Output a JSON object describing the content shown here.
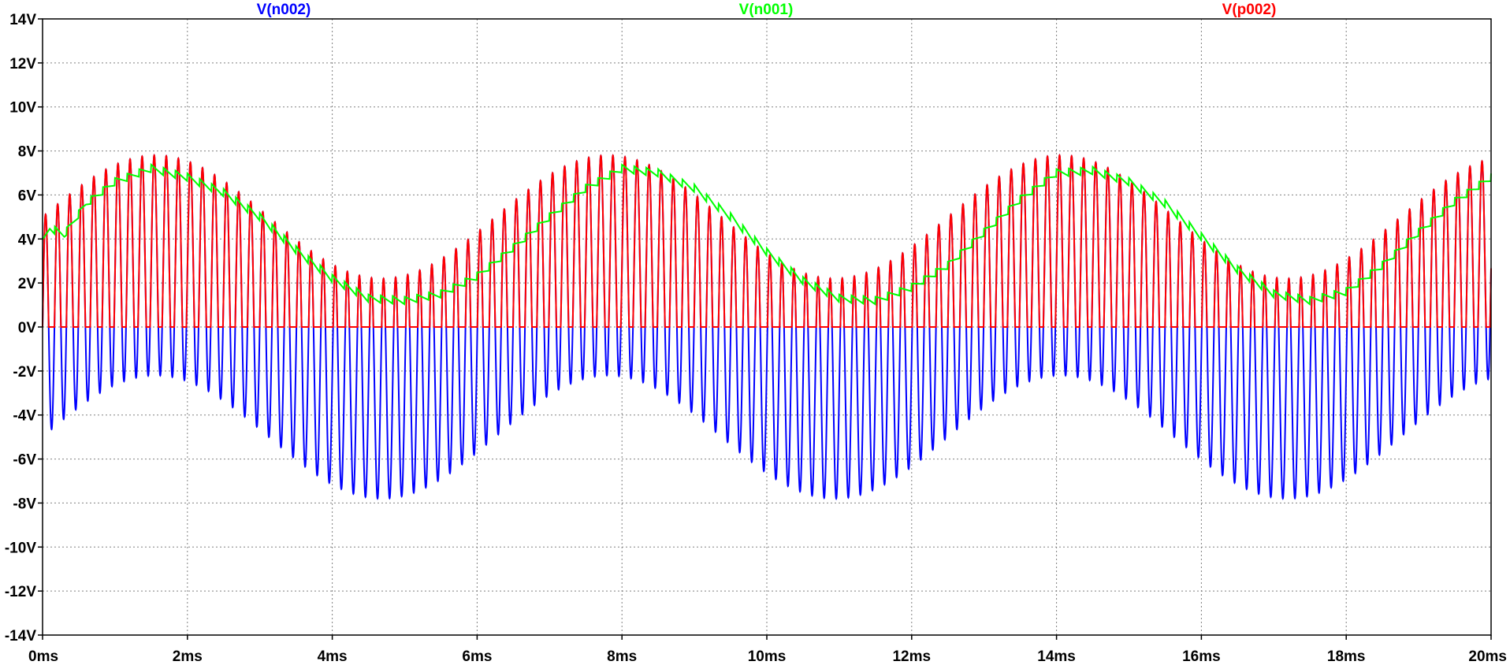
{
  "chart_data": {
    "type": "line",
    "title": "",
    "xlabel": "",
    "ylabel": "",
    "xlim": [
      0,
      20
    ],
    "ylim": [
      -14,
      14
    ],
    "x_unit": "ms",
    "y_unit": "V",
    "grid": true,
    "grid_style": "dotted",
    "legend_placement": "top",
    "x_ticks": [
      0,
      2,
      4,
      6,
      8,
      10,
      12,
      14,
      16,
      18,
      20
    ],
    "x_tick_labels": [
      "0ms",
      "2ms",
      "4ms",
      "6ms",
      "8ms",
      "10ms",
      "12ms",
      "14ms",
      "16ms",
      "18ms",
      "20ms"
    ],
    "y_ticks": [
      14,
      12,
      10,
      8,
      6,
      4,
      2,
      0,
      -2,
      -4,
      -6,
      -8,
      -10,
      -12,
      -14
    ],
    "y_tick_labels": [
      "14V",
      "12V",
      "10V",
      "8V",
      "6V",
      "4V",
      "2V",
      "0V",
      "-2V",
      "-4V",
      "-6V",
      "-8V",
      "-10V",
      "-12V",
      "-14V"
    ],
    "series": [
      {
        "name": "V(n002)",
        "color": "#0000ff",
        "description": "AM-like waveform: carrier ~6 kHz, amplitude ~5 V, offset modulated by a ~160 Hz sine (envelope +7.8 V / -7.8 V)",
        "carrier_khz": 6.0,
        "carrier_amplitude_v": 5.0,
        "mod_period_ms": 6.25,
        "mod_amplitude_v": 2.8,
        "min_v": -7.8,
        "max_v": 7.9
      },
      {
        "name": "V(n001)",
        "color": "#00ff00",
        "description": "Envelope following the positive peaks, slowly varying between ~1.2 V and ~7.2 V",
        "points": [
          [
            0.0,
            3.8
          ],
          [
            0.1,
            4.5
          ],
          [
            0.3,
            4.2
          ],
          [
            0.6,
            5.6
          ],
          [
            1.0,
            6.6
          ],
          [
            1.5,
            7.2
          ],
          [
            2.0,
            6.8
          ],
          [
            2.5,
            6.1
          ],
          [
            3.0,
            5.0
          ],
          [
            3.5,
            3.5
          ],
          [
            4.0,
            2.2
          ],
          [
            4.5,
            1.3
          ],
          [
            5.0,
            1.2
          ],
          [
            5.5,
            1.5
          ],
          [
            6.0,
            2.3
          ],
          [
            6.5,
            3.6
          ],
          [
            7.0,
            5.0
          ],
          [
            7.5,
            6.3
          ],
          [
            8.0,
            7.2
          ],
          [
            8.5,
            7.0
          ],
          [
            9.0,
            6.3
          ],
          [
            9.5,
            5.0
          ],
          [
            10.0,
            3.4
          ],
          [
            10.5,
            2.1
          ],
          [
            11.0,
            1.3
          ],
          [
            11.5,
            1.2
          ],
          [
            12.0,
            1.8
          ],
          [
            12.5,
            2.8
          ],
          [
            13.0,
            4.3
          ],
          [
            13.5,
            5.8
          ],
          [
            14.0,
            7.0
          ],
          [
            14.5,
            7.1
          ],
          [
            15.0,
            6.6
          ],
          [
            15.5,
            5.6
          ],
          [
            16.0,
            4.1
          ],
          [
            16.5,
            2.6
          ],
          [
            17.0,
            1.5
          ],
          [
            17.5,
            1.2
          ],
          [
            18.0,
            1.6
          ],
          [
            18.5,
            2.8
          ],
          [
            19.0,
            4.3
          ],
          [
            19.5,
            5.7
          ],
          [
            20.0,
            6.8
          ]
        ]
      },
      {
        "name": "V(p002)",
        "color": "#ff0000",
        "description": "Half-wave rectified version of V(n002): follows positive half of the carrier, 0 V otherwise"
      }
    ]
  }
}
